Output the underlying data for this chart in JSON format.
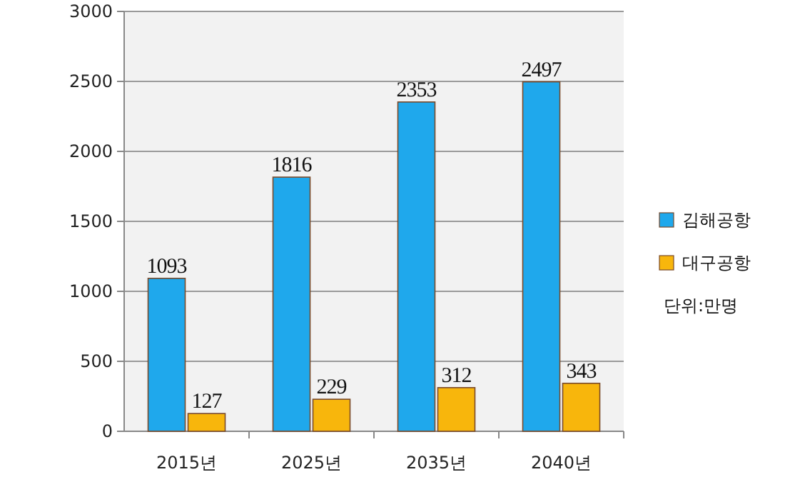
{
  "chart_data": {
    "type": "bar",
    "categories": [
      "2015년",
      "2025년",
      "2035년",
      "2040년"
    ],
    "series": [
      {
        "name": "김해공항",
        "color": "#1fa8ec",
        "values": [
          1093,
          1816,
          2353,
          2497
        ]
      },
      {
        "name": "대구공항",
        "color": "#f8b60c",
        "values": [
          127,
          229,
          312,
          343
        ]
      }
    ],
    "ylim": [
      0,
      3000
    ],
    "yticks": [
      0,
      500,
      1000,
      1500,
      2000,
      2500,
      3000
    ],
    "grid": "y",
    "legend": "right",
    "data_labels": true,
    "annotations": [
      "단위:만명"
    ]
  }
}
